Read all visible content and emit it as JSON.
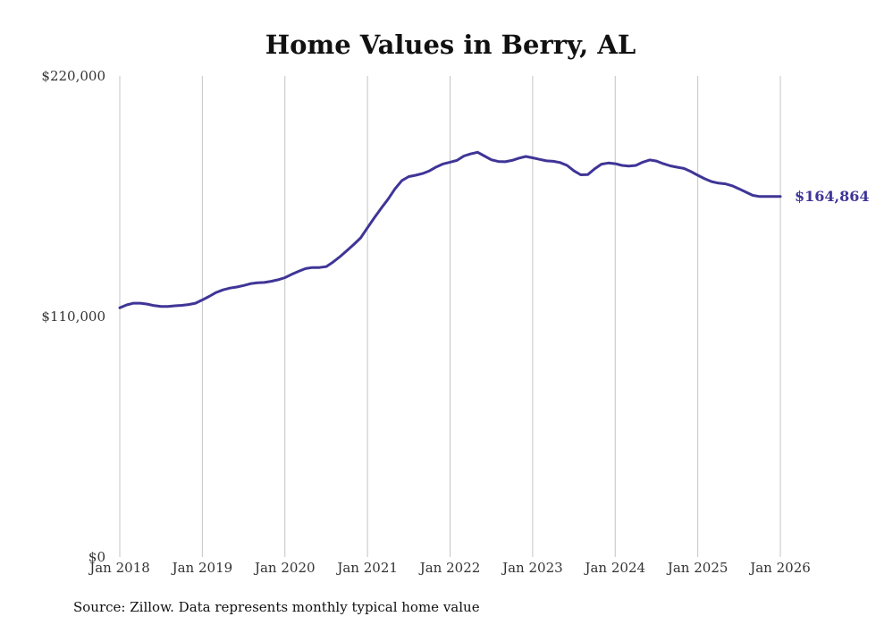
{
  "chart_data": {
    "type": "line",
    "title": "Home Values in Berry, AL",
    "xlabel": "",
    "ylabel": "",
    "ylim": [
      0,
      220000
    ],
    "yticks": [
      0,
      110000,
      220000
    ],
    "ytick_labels": [
      "$0",
      "$110,000",
      "$220,000"
    ],
    "xlim": [
      2018.0,
      2026.0
    ],
    "xticks": [
      2018,
      2019,
      2020,
      2021,
      2022,
      2023,
      2024,
      2025,
      2026
    ],
    "xtick_labels": [
      "Jan 2018",
      "Jan 2019",
      "Jan 2020",
      "Jan 2021",
      "Jan 2022",
      "Jan 2023",
      "Jan 2024",
      "Jan 2025",
      "Jan 2026"
    ],
    "grid": "vertical",
    "line_color": "#3f3597",
    "end_label": "$164,864",
    "source": "Source: Zillow. Data represents monthly typical home value",
    "series": [
      {
        "name": "Typical home value",
        "x": [
          2018.0,
          2018.083,
          2018.167,
          2018.25,
          2018.333,
          2018.417,
          2018.5,
          2018.583,
          2018.667,
          2018.75,
          2018.833,
          2018.917,
          2019.0,
          2019.083,
          2019.167,
          2019.25,
          2019.333,
          2019.417,
          2019.5,
          2019.583,
          2019.667,
          2019.75,
          2019.833,
          2019.917,
          2020.0,
          2020.083,
          2020.167,
          2020.25,
          2020.333,
          2020.417,
          2020.5,
          2020.583,
          2020.667,
          2020.75,
          2020.833,
          2020.917,
          2021.0,
          2021.083,
          2021.167,
          2021.25,
          2021.333,
          2021.417,
          2021.5,
          2021.583,
          2021.667,
          2021.75,
          2021.833,
          2021.917,
          2022.0,
          2022.083,
          2022.167,
          2022.25,
          2022.333,
          2022.417,
          2022.5,
          2022.583,
          2022.667,
          2022.75,
          2022.833,
          2022.917,
          2023.0,
          2023.083,
          2023.167,
          2023.25,
          2023.333,
          2023.417,
          2023.5,
          2023.583,
          2023.667,
          2023.75,
          2023.833,
          2023.917,
          2024.0,
          2024.083,
          2024.167,
          2024.25,
          2024.333,
          2024.417,
          2024.5,
          2024.583,
          2024.667,
          2024.75,
          2024.833,
          2024.917,
          2025.0,
          2025.083,
          2025.167,
          2025.25,
          2025.333,
          2025.417,
          2025.5,
          2025.583,
          2025.667,
          2025.75,
          2025.833,
          2025.917,
          2026.0
        ],
        "values": [
          114000,
          115300,
          116100,
          116100,
          115700,
          115000,
          114600,
          114600,
          114900,
          115100,
          115500,
          116100,
          117600,
          119200,
          121000,
          122200,
          123000,
          123500,
          124200,
          125000,
          125400,
          125600,
          126100,
          126800,
          127800,
          129300,
          130700,
          131900,
          132400,
          132400,
          132800,
          134900,
          137400,
          140100,
          142900,
          146000,
          150600,
          155200,
          159600,
          163700,
          168400,
          172200,
          174000,
          174600,
          175400,
          176600,
          178400,
          179800,
          180600,
          181400,
          183400,
          184400,
          185100,
          183400,
          181700,
          180900,
          180800,
          181400,
          182400,
          183200,
          182600,
          181900,
          181200,
          181000,
          180400,
          179100,
          176600,
          174800,
          174900,
          177500,
          179700,
          180200,
          179900,
          179100,
          178800,
          179100,
          180600,
          181600,
          181100,
          179900,
          178900,
          178300,
          177700,
          176300,
          174600,
          173000,
          171700,
          171000,
          170700,
          169800,
          168400,
          166900,
          165400,
          164864,
          164864,
          164864,
          164864
        ]
      }
    ]
  }
}
